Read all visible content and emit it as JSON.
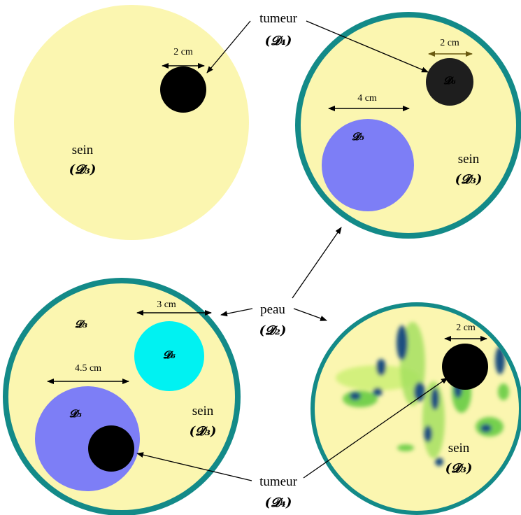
{
  "labels": {
    "tumeur": "tumeur",
    "peau": "peau",
    "sein": "sein",
    "D2": "(𝓓₂)",
    "D3": "(𝓓₃)",
    "D4": "(𝓓₄)",
    "D3_plain": "𝓓₃",
    "D5": "𝓓₅",
    "D6": "𝓓₆"
  },
  "dimensions": {
    "tumor_top_left": "2 cm",
    "tumor_top_right": "2 cm",
    "inclusion_top_right": "4 cm",
    "tumor_bottom_left": "3 cm",
    "inclusion_bottom_left": "4.5 cm",
    "tumor_bottom_right": "2 cm"
  },
  "colors": {
    "breast": "#fbf6b0",
    "skin": "#138a88",
    "tumor": "#000000",
    "tumor_dark": "#1e1e1e",
    "inclusion_blue": "#7d7ef6",
    "inclusion_cyan": "#00f2f2",
    "arrow_olive": "#6a5a10"
  }
}
